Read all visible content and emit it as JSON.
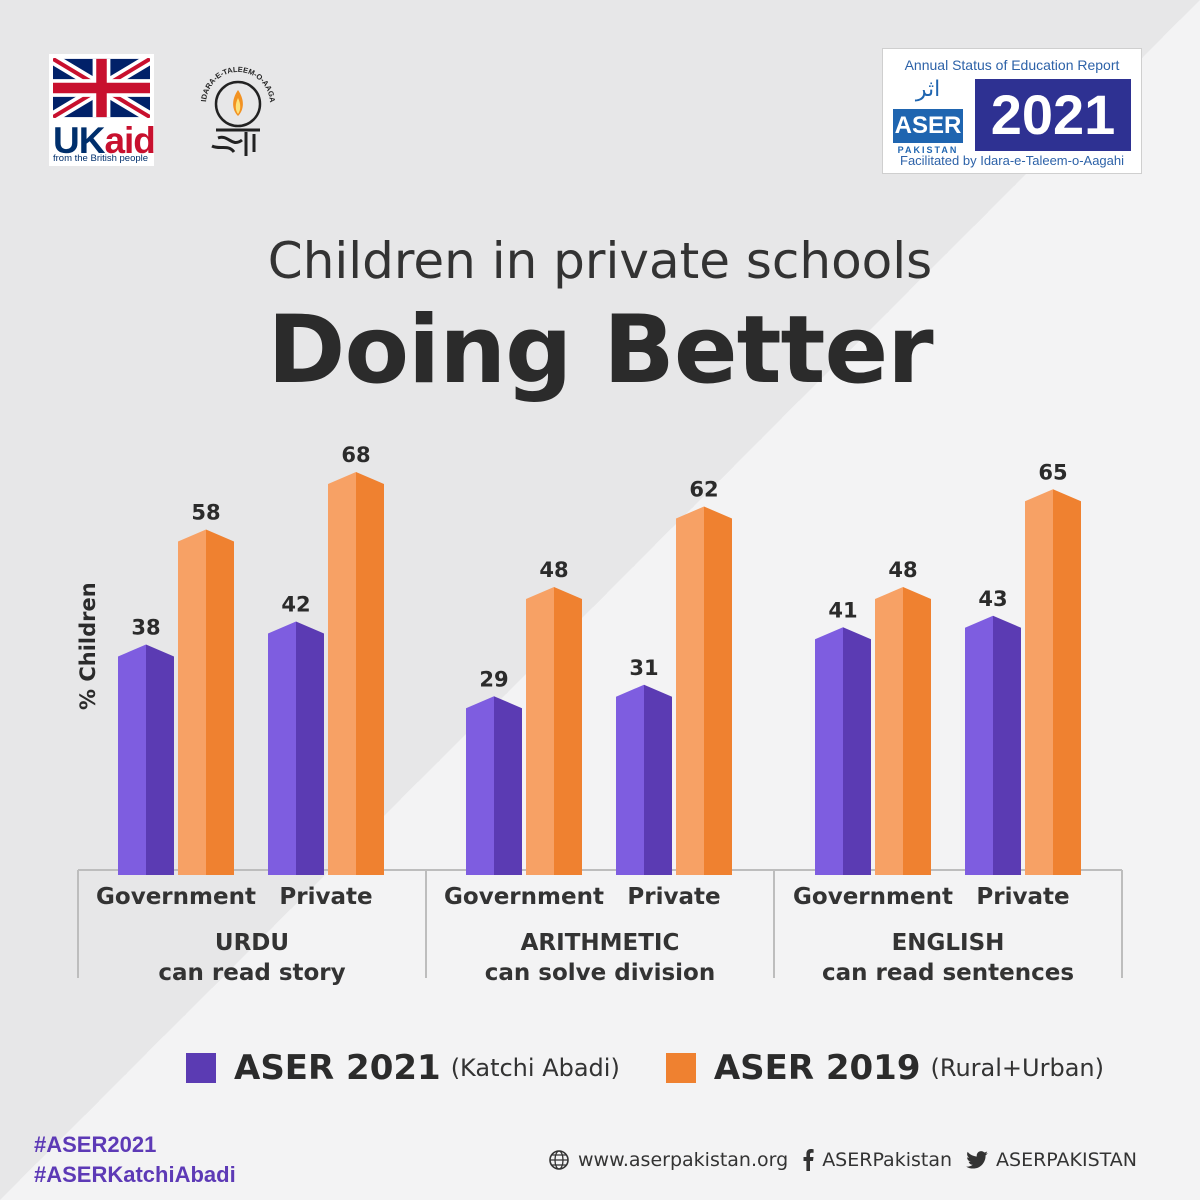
{
  "logos": {
    "ukaid": {
      "uk": "UK",
      "aid": "aid",
      "tagline": "from the British people"
    },
    "ita": {
      "arc_text": "IDARA-E-TALEEM-O-AAGAHI"
    },
    "aser_badge": {
      "top_text": "Annual Status of Education Report",
      "urdu": "اثر",
      "aser": "ASER",
      "pakistan": "PAKISTAN",
      "year": "2021",
      "bottom_text": "Facilitated by Idara-e-Taleem-o-Aagahi"
    }
  },
  "heading": {
    "subtitle": "Children in private schools",
    "title": "Doing Better"
  },
  "colors": {
    "aser2021": "#7e5de0",
    "aser2021_dark": "#5b3bb3",
    "aser2019": "#f7a165",
    "aser2019_dark": "#ef8130",
    "hashtag": "#5d3ab6"
  },
  "chart_data": {
    "type": "bar",
    "ylabel": "% Children",
    "groups": [
      {
        "subject": "URDU",
        "skill": "can read story",
        "categories": [
          "Government",
          "Private"
        ]
      },
      {
        "subject": "ARITHMETIC",
        "skill": "can solve division",
        "categories": [
          "Government",
          "Private"
        ]
      },
      {
        "subject": "ENGLISH",
        "skill": "can read sentences",
        "categories": [
          "Government",
          "Private"
        ]
      }
    ],
    "series": [
      {
        "name": "ASER 2021",
        "note": "(Katchi Abadi)",
        "values": [
          38,
          42,
          29,
          31,
          41,
          43
        ]
      },
      {
        "name": "ASER 2019",
        "note": "(Rural+Urban)",
        "values": [
          58,
          68,
          48,
          62,
          48,
          65
        ]
      }
    ],
    "ylim": [
      0,
      100
    ]
  },
  "footer": {
    "hashtags": [
      "#ASER2021",
      "#ASERKatchiAbadi"
    ],
    "website": "www.aserpakistan.org",
    "facebook": "ASERPakistan",
    "twitter": "ASERPAKISTAN"
  }
}
